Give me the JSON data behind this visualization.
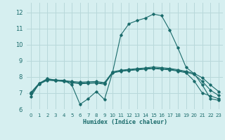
{
  "xlabel": "Humidex (Indice chaleur)",
  "background_color": "#d6eff0",
  "grid_color": "#b8d8da",
  "line_color": "#1a6b6b",
  "xlim": [
    -0.5,
    23.5
  ],
  "ylim": [
    6.0,
    12.6
  ],
  "yticks": [
    6,
    7,
    8,
    9,
    10,
    11,
    12
  ],
  "xticks": [
    0,
    1,
    2,
    3,
    4,
    5,
    6,
    7,
    8,
    9,
    10,
    11,
    12,
    13,
    14,
    15,
    16,
    17,
    18,
    19,
    20,
    21,
    22,
    23
  ],
  "lines": [
    {
      "x": [
        0,
        1,
        2,
        3,
        4,
        5,
        6,
        7,
        8,
        9,
        10,
        11,
        12,
        13,
        14,
        15,
        16,
        17,
        18,
        19,
        20,
        21,
        22,
        23
      ],
      "y": [
        6.8,
        7.6,
        7.9,
        7.8,
        7.8,
        7.5,
        6.3,
        6.65,
        7.1,
        6.6,
        8.3,
        10.6,
        11.3,
        11.5,
        11.65,
        11.9,
        11.8,
        10.9,
        9.8,
        8.6,
        8.2,
        7.5,
        6.65,
        6.55
      ]
    },
    {
      "x": [
        0,
        1,
        2,
        3,
        4,
        5,
        6,
        7,
        8,
        9,
        10,
        11,
        12,
        13,
        14,
        15,
        16,
        17,
        18,
        19,
        20,
        21,
        22,
        23
      ],
      "y": [
        7.05,
        7.62,
        7.85,
        7.82,
        7.78,
        7.72,
        7.68,
        7.7,
        7.72,
        7.65,
        8.32,
        8.42,
        8.47,
        8.52,
        8.56,
        8.62,
        8.58,
        8.53,
        8.45,
        8.35,
        8.22,
        7.95,
        7.5,
        7.1
      ]
    },
    {
      "x": [
        0,
        1,
        2,
        3,
        4,
        5,
        6,
        7,
        8,
        9,
        10,
        11,
        12,
        13,
        14,
        15,
        16,
        17,
        18,
        19,
        20,
        21,
        22,
        23
      ],
      "y": [
        7.0,
        7.58,
        7.82,
        7.79,
        7.75,
        7.68,
        7.62,
        7.64,
        7.66,
        7.6,
        8.28,
        8.38,
        8.43,
        8.48,
        8.52,
        8.56,
        8.52,
        8.48,
        8.4,
        8.3,
        8.15,
        7.72,
        7.18,
        6.85
      ]
    },
    {
      "x": [
        0,
        1,
        2,
        3,
        4,
        5,
        6,
        7,
        8,
        9,
        10,
        11,
        12,
        13,
        14,
        15,
        16,
        17,
        18,
        19,
        20,
        21,
        22,
        23
      ],
      "y": [
        6.95,
        7.55,
        7.8,
        7.76,
        7.72,
        7.64,
        7.58,
        7.6,
        7.62,
        7.55,
        8.25,
        8.35,
        8.4,
        8.44,
        8.48,
        8.52,
        8.48,
        8.44,
        8.36,
        8.26,
        7.75,
        7.0,
        6.82,
        6.65
      ]
    }
  ]
}
